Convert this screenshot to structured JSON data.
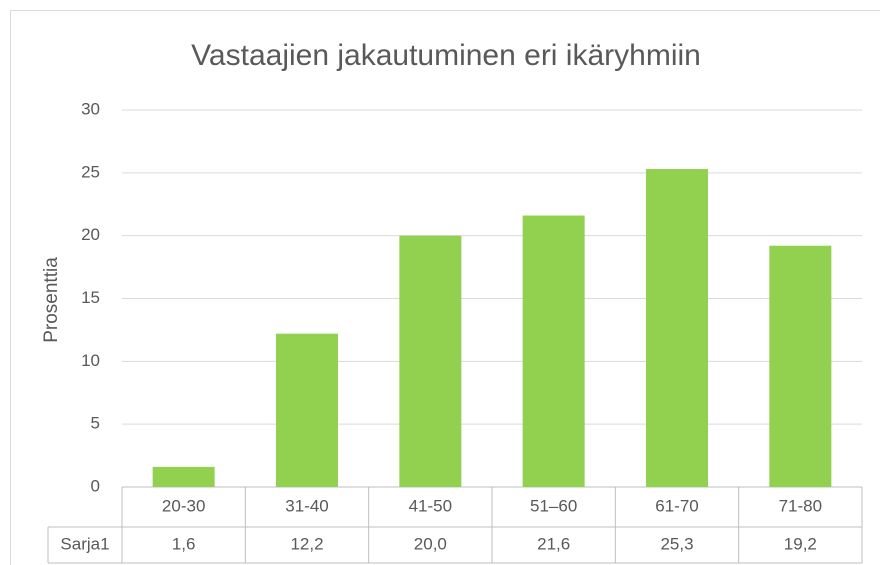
{
  "chart_data": {
    "type": "bar",
    "title": "Vastaajien jakautuminen eri ikäryhmiin",
    "y_axis_label": "Prosenttia",
    "categories": [
      "20-30",
      "31-40",
      "41-50",
      "51–60",
      "61-70",
      "71-80"
    ],
    "series": [
      {
        "name": "Sarja1",
        "color": "#92d050",
        "values": [
          1.6,
          12.2,
          20.0,
          21.6,
          25.3,
          19.2
        ],
        "value_labels": [
          "1,6",
          "12,2",
          "20,0",
          "21,6",
          "25,3",
          "19,2"
        ]
      }
    ],
    "ylim": [
      0,
      30
    ],
    "yticks": [
      0,
      5,
      10,
      15,
      20,
      25,
      30
    ],
    "grid": true
  }
}
